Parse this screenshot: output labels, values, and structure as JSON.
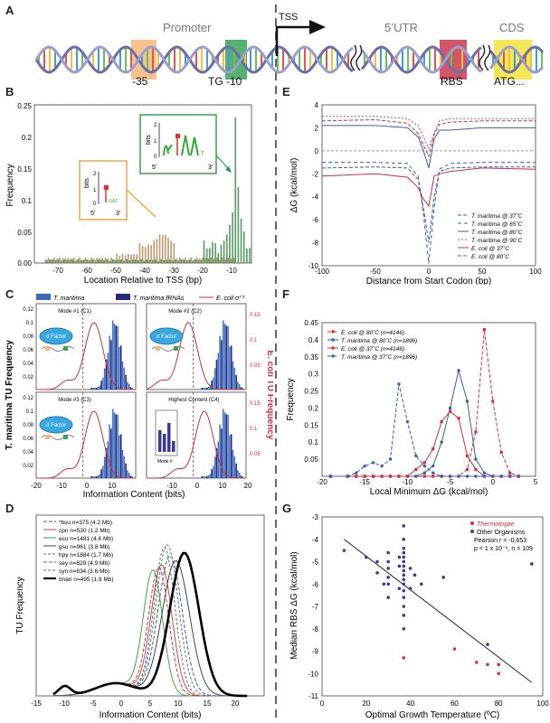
{
  "panel_labels": {
    "a": "A",
    "b": "B",
    "c": "C",
    "d": "D",
    "e": "E",
    "f": "F",
    "g": "G"
  },
  "panel_a": {
    "promoter": "Promoter",
    "tss": "TSS",
    "utr": "5’UTR",
    "cds": "CDS",
    "minus35": "-35",
    "tg": "TG",
    "minus10": "-10",
    "rbs": "RBS",
    "atg": "ATG...",
    "colors": {
      "minus35": "#f5b97a",
      "minus10": "#3aa35a",
      "rbs": "#c8384e",
      "atg": "#f2e33b"
    }
  },
  "panel_b": {
    "ylabel": "Frequency",
    "xlabel": "Location Relative to TSS (bp)",
    "yticks": [
      "0.25",
      "0.2",
      "0.15",
      "0.1",
      "0.05",
      "0.00"
    ],
    "xticks": [
      "-70",
      "-60",
      "-50",
      "-40",
      "-30",
      "-20",
      "-10"
    ],
    "logo_left": {
      "bits": "bits",
      "y2": "2",
      "y1": "1",
      "y0": "0",
      "five": "5'",
      "three": "3'"
    },
    "logo_right": {
      "bits": "bits",
      "y2": "2",
      "y1": "1",
      "y0": "0",
      "five": "5'",
      "three": "3'"
    }
  },
  "panel_c": {
    "legend": [
      "T. maritima",
      "T. maritima fRNAs",
      "E. coli σ⁷⁰"
    ],
    "ylabel_left": "T. maritima TU Frequency",
    "ylabel_right": "E. coli TU Frequency",
    "xlabel": "Information Content (bits)",
    "subpanels": [
      "Mode #1 (C1)",
      "Mode #2 (C2)",
      "Mode #3 (C3)",
      "Highest Content (C4)"
    ],
    "sigma": "σ Factor",
    "mode_label": "Mode #",
    "xticks": [
      "-20",
      "-10",
      "0",
      "10",
      "20"
    ],
    "yticks_left": [
      "0.12",
      "0.1",
      "0.08",
      "0.06",
      "0.04",
      "0.02"
    ],
    "yticks_right": [
      "0.15",
      "0.1",
      "0.05"
    ]
  },
  "panel_d": {
    "ylabel": "TU Frequency",
    "xlabel": "Information Content (bits)",
    "xticks": [
      "-15",
      "-10",
      "-5",
      "0",
      "5",
      "10",
      "15",
      "20"
    ],
    "legend": [
      "*bsu n=375 (4.2 Mb)",
      "cpn n=530 (1.2 Mb)",
      "eco n=1481 (4.6 Mb)",
      "gsu n=961 (3.8 Mb)",
      "hpy n=1884 (1.7 Mb)",
      "sey n=829 (4.9 Mb)",
      "syn n=634 (3.6 Mb)",
      "tmari n=495 (1.9 Mb)"
    ],
    "colors": [
      "#3a5ea8",
      "#d24a4a",
      "#3aa84a",
      "#444444",
      "#6a6aa8",
      "#c83a3a",
      "#3a8a5a",
      "#000000"
    ]
  },
  "panel_e": {
    "ylabel": "ΔG (kcal/mol)",
    "xlabel": "Distance from Start Codon (bp)",
    "yticks": [
      "4",
      "2",
      "0",
      "-2",
      "-4",
      "-6",
      "-8",
      "-10"
    ],
    "xticks": [
      "-100",
      "-50",
      "0",
      "50",
      "100"
    ],
    "legend": [
      "T. maritima @ 37˚C",
      "T. maritima @ 65˚C",
      "T. maritima @ 80˚C",
      "T. maritima @ 90˚C",
      "E. coli @ 37˚C",
      "E. coli @ 80˚C"
    ]
  },
  "panel_f": {
    "ylabel": "Frequency",
    "xlabel": "Local Minimum ΔG (kcal/mol)",
    "yticks": [
      "0.45",
      "0.4",
      "0.35",
      "0.3",
      "0.25",
      "0.2",
      "0.15",
      "0.1",
      "0.05"
    ],
    "xticks": [
      "-20",
      "-15",
      "-10",
      "-5",
      "0",
      "5"
    ],
    "legend": [
      "E. coli @ 80˚C (n=4146)",
      "T. maritima @ 80˚C (n=1896)",
      "E. coli @ 37˚C (n=4146)",
      "T. maritima @ 37˚C (n=1896)"
    ]
  },
  "panel_g": {
    "ylabel": "Median RBS ΔG (kcal/mol)",
    "xlabel": "Optimal Growth Temperature (ºC)",
    "yticks": [
      "-3",
      "-4",
      "-5",
      "-6",
      "-7",
      "-8",
      "-9",
      "-10",
      "-11"
    ],
    "xticks": [
      "0",
      "20",
      "40",
      "60",
      "80",
      "100"
    ],
    "legend": [
      "Thermotogae",
      "Other Organisms"
    ],
    "stats": [
      "Pearson r = -0.653",
      "p < 1 x 10⁻⁶, n = 109"
    ]
  },
  "chart_data": [
    {
      "type": "line",
      "title": "",
      "xlabel": "Distance from Start Codon (bp)",
      "ylabel": "ΔG (kcal/mol)",
      "xlim": [
        -100,
        100
      ],
      "ylim": [
        -10,
        4
      ],
      "series": [
        {
          "name": "T. maritima @ 37˚C",
          "x": [
            -100,
            -50,
            -20,
            -10,
            -5,
            0,
            5,
            10,
            20,
            50,
            100
          ],
          "values": [
            -1.5,
            -1.4,
            -1.5,
            -2.5,
            -5,
            -8,
            -4,
            -1.8,
            -1.5,
            -1.4,
            -1.4
          ]
        },
        {
          "name": "T. maritima @ 65˚C",
          "x": [
            -100,
            -50,
            -20,
            -10,
            -5,
            0,
            5,
            10,
            20,
            50,
            100
          ],
          "values": [
            -1.0,
            -1.0,
            -1.1,
            -2.2,
            -5.5,
            -9.8,
            -5,
            -1.6,
            -1.1,
            -1.0,
            -1.0
          ]
        },
        {
          "name": "T. maritima @ 80˚C",
          "x": [
            -100,
            -50,
            -20,
            -10,
            -5,
            0,
            5,
            10,
            20,
            50,
            100
          ],
          "values": [
            2.2,
            2.2,
            2.0,
            1.2,
            0,
            -1.5,
            1.0,
            1.8,
            1.8,
            2.0,
            2.0
          ]
        },
        {
          "name": "T. maritima @ 90˚C",
          "x": [
            -100,
            -50,
            -20,
            -10,
            -5,
            0,
            5,
            10,
            20,
            50,
            100
          ],
          "values": [
            3.0,
            3.0,
            2.8,
            2.2,
            1.2,
            0.2,
            1.6,
            2.6,
            2.8,
            2.8,
            2.8
          ]
        },
        {
          "name": "E. coli @ 37˚C",
          "x": [
            -100,
            -50,
            -20,
            -10,
            -5,
            0,
            5,
            10,
            20,
            50,
            100
          ],
          "values": [
            -2.2,
            -2.0,
            -2.3,
            -3.2,
            -4.2,
            -4.8,
            -2.2,
            -2.0,
            -1.8,
            -1.5,
            -1.6
          ]
        },
        {
          "name": "E. coli @ 80˚C",
          "x": [
            -100,
            -50,
            -20,
            -10,
            -5,
            0,
            5,
            10,
            20,
            50,
            100
          ],
          "values": [
            2.6,
            2.7,
            2.4,
            1.5,
            0.5,
            -0.5,
            1.4,
            2.3,
            2.5,
            2.6,
            2.6
          ]
        }
      ]
    },
    {
      "type": "line",
      "title": "",
      "xlabel": "Local Minimum ΔG (kcal/mol)",
      "ylabel": "Frequency",
      "xlim": [
        -20,
        5
      ],
      "ylim": [
        0,
        0.45
      ],
      "x": [
        -19,
        -17,
        -16,
        -15,
        -14,
        -13,
        -12,
        -11,
        -10,
        -9,
        -8,
        -7,
        -6,
        -5,
        -4,
        -3,
        -2,
        -1,
        0,
        1,
        2,
        3
      ],
      "series": [
        {
          "name": "E. coli @ 80˚C (n=4146)",
          "values": [
            0,
            0,
            0,
            0,
            0,
            0,
            0,
            0,
            0,
            0,
            0,
            0,
            0,
            0,
            0,
            0.02,
            0.13,
            0.43,
            0.22,
            0.07,
            0.01,
            0
          ]
        },
        {
          "name": "T. maritima @ 80˚C (n=1896)",
          "values": [
            0,
            0,
            0,
            0,
            0,
            0,
            0,
            0,
            0,
            0,
            0.01,
            0.03,
            0.1,
            0.2,
            0.31,
            0.22,
            0.05,
            0.01,
            0,
            0,
            0,
            0
          ]
        },
        {
          "name": "E. coli @ 37˚C (n=4146)",
          "values": [
            0,
            0,
            0,
            0,
            0,
            0,
            0,
            0,
            0,
            0.02,
            0.04,
            0.08,
            0.16,
            0.19,
            0.17,
            0.06,
            0.02,
            0,
            0,
            0,
            0,
            0
          ]
        },
        {
          "name": "T. maritima @ 37˚C (n=1896)",
          "values": [
            0,
            0,
            0.01,
            0.03,
            0.04,
            0.03,
            0.05,
            0.27,
            0.16,
            0.06,
            0.03,
            0.01,
            0,
            0,
            0,
            0,
            0,
            0,
            0,
            0,
            0,
            0
          ]
        }
      ]
    },
    {
      "type": "scatter",
      "title": "",
      "xlabel": "Optimal Growth Temperature (ºC)",
      "ylabel": "Median RBS ΔG (kcal/mol)",
      "xlim": [
        0,
        100
      ],
      "ylim": [
        -11,
        -3
      ],
      "series": [
        {
          "name": "Thermotogae",
          "x": [
            37,
            60,
            70,
            75,
            80,
            80
          ],
          "values": [
            -9.3,
            -8.9,
            -9.5,
            -9.6,
            -9.6,
            -10
          ]
        },
        {
          "name": "Other Organisms",
          "x": [
            10,
            20,
            25,
            25,
            28,
            30,
            30,
            30,
            30,
            30,
            30,
            35,
            35,
            35,
            37,
            37,
            37,
            37,
            37,
            37,
            37,
            37,
            37,
            37,
            37,
            37,
            37,
            37,
            37,
            37,
            40,
            40,
            42,
            45,
            55,
            75,
            95
          ],
          "values": [
            -4.5,
            -4.8,
            -5.0,
            -5.5,
            -6.0,
            -4.6,
            -5.0,
            -5.3,
            -5.7,
            -6.0,
            -6.6,
            -4.8,
            -5.2,
            -6.2,
            -3.4,
            -4.0,
            -4.4,
            -4.6,
            -4.8,
            -5.0,
            -5.2,
            -5.4,
            -5.6,
            -5.8,
            -6.0,
            -6.3,
            -6.6,
            -7.0,
            -7.4,
            -8.0,
            -5.3,
            -6.2,
            -5.6,
            -6.0,
            -5.7,
            -8.7,
            -5.1
          ]
        }
      ],
      "fit": {
        "x": [
          10,
          95
        ],
        "values": [
          -4.0,
          -10.4
        ]
      }
    }
  ]
}
